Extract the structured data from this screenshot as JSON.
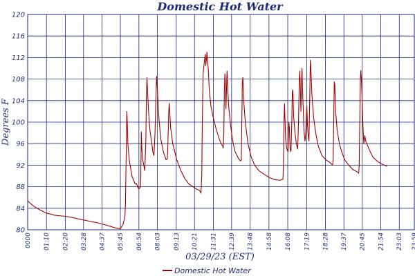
{
  "chart_data": {
    "type": "line",
    "title": "Domestic Hot Water",
    "xlabel": "03/29/23 (EST)",
    "ylabel": "Degrees F",
    "ylim": [
      80,
      120
    ],
    "yticks": [
      80,
      84,
      88,
      92,
      96,
      100,
      104,
      108,
      112,
      116,
      120
    ],
    "xlim": [
      0,
      1439
    ],
    "xticks": [
      {
        "minute": 0,
        "label": "0000"
      },
      {
        "minute": 70,
        "label": "01:10"
      },
      {
        "minute": 140,
        "label": "02:20"
      },
      {
        "minute": 208,
        "label": "03:28"
      },
      {
        "minute": 277,
        "label": "04:37"
      },
      {
        "minute": 345,
        "label": "05:45"
      },
      {
        "minute": 414,
        "label": "06:54"
      },
      {
        "minute": 483,
        "label": "08:03"
      },
      {
        "minute": 553,
        "label": "09:13"
      },
      {
        "minute": 621,
        "label": "10:21"
      },
      {
        "minute": 691,
        "label": "11:31"
      },
      {
        "minute": 759,
        "label": "12:39"
      },
      {
        "minute": 828,
        "label": "13:48"
      },
      {
        "minute": 898,
        "label": "14:58"
      },
      {
        "minute": 968,
        "label": "16:08"
      },
      {
        "minute": 1039,
        "label": "17:19"
      },
      {
        "minute": 1108,
        "label": "18:28"
      },
      {
        "minute": 1177,
        "label": "19:37"
      },
      {
        "minute": 1245,
        "label": "20:45"
      },
      {
        "minute": 1314,
        "label": "21:54"
      },
      {
        "minute": 1383,
        "label": "23:03"
      },
      {
        "minute": 1439,
        "label": "23:59"
      }
    ],
    "grid": true,
    "legend_position": "bottom-center",
    "series": [
      {
        "name": "Domestic Hot Water",
        "color": "#a00000",
        "points": [
          [
            0,
            85.4
          ],
          [
            10,
            84.9
          ],
          [
            25,
            84.3
          ],
          [
            45,
            83.7
          ],
          [
            70,
            83.1
          ],
          [
            100,
            82.7
          ],
          [
            140,
            82.5
          ],
          [
            165,
            82.3
          ],
          [
            190,
            82.0
          ],
          [
            220,
            81.7
          ],
          [
            260,
            81.3
          ],
          [
            290,
            80.9
          ],
          [
            310,
            80.6
          ],
          [
            330,
            80.3
          ],
          [
            345,
            80.2
          ],
          [
            355,
            81.0
          ],
          [
            362,
            82.5
          ],
          [
            364,
            85.0
          ],
          [
            367,
            95.0
          ],
          [
            369,
            102.0
          ],
          [
            370,
            101.0
          ],
          [
            373,
            96.0
          ],
          [
            378,
            93.0
          ],
          [
            388,
            90.0
          ],
          [
            400,
            88.5
          ],
          [
            405,
            88.6
          ],
          [
            410,
            87.9
          ],
          [
            415,
            87.6
          ],
          [
            420,
            88.0
          ],
          [
            421,
            90.0
          ],
          [
            423,
            98.2
          ],
          [
            425,
            95.0
          ],
          [
            428,
            93.0
          ],
          [
            432,
            92.0
          ],
          [
            436,
            91.0
          ],
          [
            440,
            97.0
          ],
          [
            442,
            105.0
          ],
          [
            444,
            108.3
          ],
          [
            446,
            106.0
          ],
          [
            450,
            102.0
          ],
          [
            455,
            98.5
          ],
          [
            462,
            96.0
          ],
          [
            466,
            94.5
          ],
          [
            470,
            93.8
          ],
          [
            474,
            98.0
          ],
          [
            477,
            104.0
          ],
          [
            480,
            108.5
          ],
          [
            483,
            106.0
          ],
          [
            488,
            101.0
          ],
          [
            495,
            97.0
          ],
          [
            505,
            94.5
          ],
          [
            515,
            93.0
          ],
          [
            520,
            93.2
          ],
          [
            523,
            98.0
          ],
          [
            525,
            102.0
          ],
          [
            527,
            103.5
          ],
          [
            532,
            99.0
          ],
          [
            540,
            96.0
          ],
          [
            555,
            93.0
          ],
          [
            570,
            91.0
          ],
          [
            585,
            89.5
          ],
          [
            600,
            88.5
          ],
          [
            615,
            88.0
          ],
          [
            630,
            87.5
          ],
          [
            640,
            87.3
          ],
          [
            645,
            86.8
          ],
          [
            648,
            90.0
          ],
          [
            650,
            100.0
          ],
          [
            653,
            109.0
          ],
          [
            658,
            111.5
          ],
          [
            661,
            112.6
          ],
          [
            663,
            110.5
          ],
          [
            666,
            112.0
          ],
          [
            667,
            113.0
          ],
          [
            670,
            111.0
          ],
          [
            672,
            110.0
          ],
          [
            676,
            106.0
          ],
          [
            682,
            103.0
          ],
          [
            690,
            101.0
          ],
          [
            700,
            99.0
          ],
          [
            712,
            97.0
          ],
          [
            720,
            96.0
          ],
          [
            726,
            95.5
          ],
          [
            728,
            95.2
          ],
          [
            730,
            98.0
          ],
          [
            732,
            106.0
          ],
          [
            734,
            109.0
          ],
          [
            736,
            107.0
          ],
          [
            738,
            102.5
          ],
          [
            740,
            106.0
          ],
          [
            742,
            109.5
          ],
          [
            744,
            107.0
          ],
          [
            748,
            103.0
          ],
          [
            755,
            99.5
          ],
          [
            763,
            96.5
          ],
          [
            772,
            94.5
          ],
          [
            785,
            93.2
          ],
          [
            792,
            92.8
          ],
          [
            795,
            93.0
          ],
          [
            797,
            100.0
          ],
          [
            799,
            107.5
          ],
          [
            801,
            108.3
          ],
          [
            804,
            104.0
          ],
          [
            810,
            100.0
          ],
          [
            820,
            96.0
          ],
          [
            832,
            93.5
          ],
          [
            845,
            92.0
          ],
          [
            860,
            91.0
          ],
          [
            880,
            90.3
          ],
          [
            900,
            89.7
          ],
          [
            920,
            89.3
          ],
          [
            940,
            89.2
          ],
          [
            950,
            89.4
          ],
          [
            952,
            92.0
          ],
          [
            954,
            100.0
          ],
          [
            956,
            103.4
          ],
          [
            958,
            100.0
          ],
          [
            960,
            97.0
          ],
          [
            963,
            95.5
          ],
          [
            966,
            94.8
          ],
          [
            969,
            94.5
          ],
          [
            972,
            100.0
          ],
          [
            974,
            99.0
          ],
          [
            977,
            95.0
          ],
          [
            980,
            94.5
          ],
          [
            983,
            100.0
          ],
          [
            985,
            105.5
          ],
          [
            987,
            106.0
          ],
          [
            990,
            101.0
          ],
          [
            995,
            98.0
          ],
          [
            1000,
            96.0
          ],
          [
            1005,
            95.0
          ],
          [
            1008,
            100.0
          ],
          [
            1011,
            108.0
          ],
          [
            1013,
            109.5
          ],
          [
            1015,
            106.0
          ],
          [
            1017,
            102.0
          ],
          [
            1019,
            107.0
          ],
          [
            1021,
            110.0
          ],
          [
            1023,
            106.0
          ],
          [
            1026,
            102.0
          ],
          [
            1028,
            99.0
          ],
          [
            1030,
            97.5
          ],
          [
            1032,
            96.5
          ],
          [
            1035,
            98.0
          ],
          [
            1037,
            101.0
          ],
          [
            1039,
            103.0
          ],
          [
            1041,
            100.0
          ],
          [
            1044,
            97.5
          ],
          [
            1047,
            96.5
          ],
          [
            1050,
            105.0
          ],
          [
            1052,
            111.5
          ],
          [
            1054,
            110.0
          ],
          [
            1058,
            105.0
          ],
          [
            1064,
            101.0
          ],
          [
            1072,
            98.0
          ],
          [
            1082,
            95.5
          ],
          [
            1095,
            93.8
          ],
          [
            1110,
            93.0
          ],
          [
            1125,
            92.5
          ],
          [
            1135,
            92.0
          ],
          [
            1137,
            93.0
          ],
          [
            1139,
            100.0
          ],
          [
            1141,
            107.5
          ],
          [
            1143,
            107.0
          ],
          [
            1146,
            102.0
          ],
          [
            1152,
            98.5
          ],
          [
            1160,
            96.0
          ],
          [
            1170,
            94.3
          ],
          [
            1180,
            93.0
          ],
          [
            1195,
            92.0
          ],
          [
            1210,
            91.2
          ],
          [
            1225,
            90.8
          ],
          [
            1232,
            90.5
          ],
          [
            1234,
            92.0
          ],
          [
            1236,
            100.0
          ],
          [
            1238,
            107.5
          ],
          [
            1240,
            109.6
          ],
          [
            1242,
            108.0
          ],
          [
            1245,
            104.0
          ],
          [
            1248,
            99.0
          ],
          [
            1251,
            96.0
          ],
          [
            1255,
            97.5
          ],
          [
            1258,
            96.5
          ],
          [
            1262,
            96.0
          ],
          [
            1268,
            95.3
          ],
          [
            1275,
            94.5
          ],
          [
            1285,
            93.5
          ],
          [
            1300,
            92.8
          ],
          [
            1315,
            92.3
          ],
          [
            1328,
            92.0
          ],
          [
            1338,
            91.8
          ]
        ]
      }
    ]
  }
}
